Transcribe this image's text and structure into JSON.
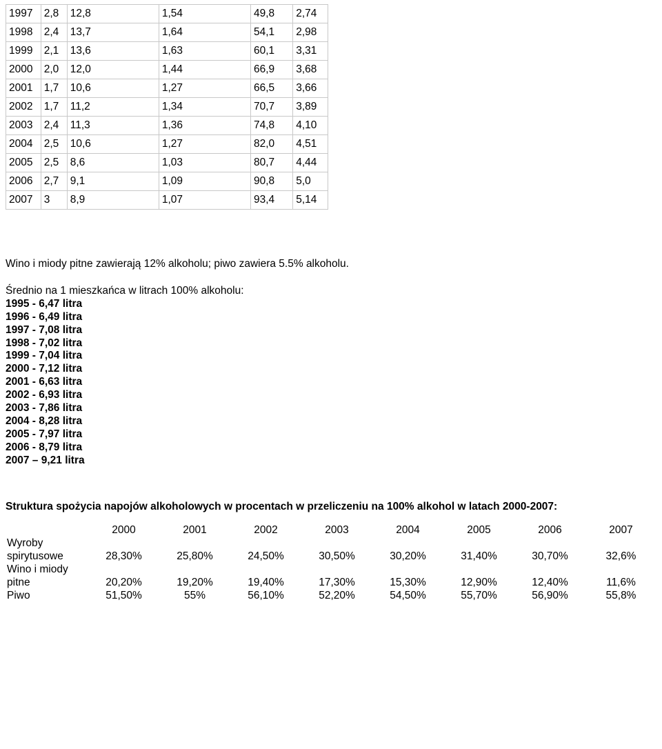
{
  "table1": {
    "rows": [
      [
        "1997",
        "2,8",
        "12,8",
        "1,54",
        "49,8",
        "2,74"
      ],
      [
        "1998",
        "2,4",
        "13,7",
        "1,64",
        "54,1",
        "2,98"
      ],
      [
        "1999",
        "2,1",
        "13,6",
        "1,63",
        "60,1",
        "3,31"
      ],
      [
        "2000",
        "2,0",
        "12,0",
        "1,44",
        "66,9",
        "3,68"
      ],
      [
        "2001",
        "1,7",
        "10,6",
        "1,27",
        "66,5",
        "3,66"
      ],
      [
        "2002",
        "1,7",
        "11,2",
        "1,34",
        "70,7",
        "3,89"
      ],
      [
        "2003",
        "2,4",
        "11,3",
        "1,36",
        "74,8",
        "4,10"
      ],
      [
        "2004",
        "2,5",
        "10,6",
        "1,27",
        "82,0",
        "4,51"
      ],
      [
        "2005",
        "2,5",
        "8,6",
        "1,03",
        "80,7",
        "4,44"
      ],
      [
        "2006",
        "2,7",
        "9,1",
        "1,09",
        "90,8",
        "5,0"
      ],
      [
        "2007",
        "3",
        "8,9",
        "1,07",
        "93,4",
        "5,14"
      ]
    ]
  },
  "note": "Wino i miody pitne zawierają 12% alkoholu; piwo zawiera 5.5% alkoholu.",
  "avg_heading": "Średnio na 1 mieszkańca w litrach 100% alkoholu:",
  "avg_items": [
    "1995 - 6,47 litra",
    "1996 - 6,49 litra",
    "1997 - 7,08 litra",
    "1998 - 7,02 litra",
    "1999 - 7,04 litra",
    "2000 - 7,12 litra",
    "2001 - 6,63 litra",
    "2002 - 6,93 litra",
    "2003 - 7,86 litra",
    "2004 - 8,28 litra",
    "2005 - 7,97 litra",
    "2006 - 8,79 litra",
    "2007 – 9,21 litra"
  ],
  "struct_heading": "Struktura spożycia napojów alkoholowych w procentach w przeliczeniu na 100% alkohol w latach 2000-2007:",
  "struct_table": {
    "years": [
      "2000",
      "2001",
      "2002",
      "2003",
      "2004",
      "2005",
      "2006",
      "2007"
    ],
    "rows": [
      {
        "label_top": "Wyroby",
        "label": "spirytusowe",
        "vals": [
          "28,30%",
          "25,80%",
          "24,50%",
          "30,50%",
          "30,20%",
          "31,40%",
          "30,70%",
          "32,6%"
        ]
      },
      {
        "label_top": "Wino i miody",
        "label": "pitne",
        "vals": [
          "20,20%",
          "19,20%",
          "19,40%",
          "17,30%",
          "15,30%",
          "12,90%",
          "12,40%",
          "11,6%"
        ]
      },
      {
        "label_top": "",
        "label": "Piwo",
        "vals": [
          "51,50%",
          "55%",
          "56,10%",
          "52,20%",
          "54,50%",
          "55,70%",
          "56,90%",
          "55,8%"
        ]
      }
    ]
  }
}
